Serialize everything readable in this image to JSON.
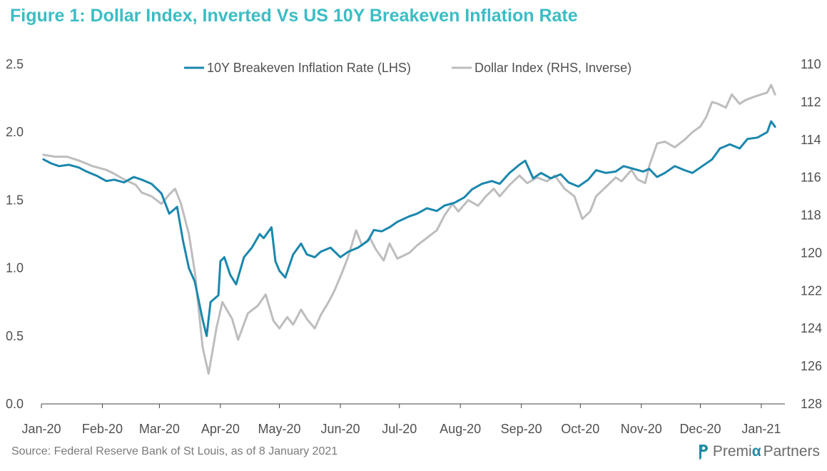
{
  "title": "Figure 1: Dollar Index, Inverted Vs US 10Y Breakeven Inflation Rate",
  "source": "Source: Federal Reserve Bank of St Louis, as of 8 January 2021",
  "brand": {
    "part1": "Premi",
    "alpha": "α",
    "part2": "Partners",
    "icon": "brand-logo-icon"
  },
  "colors": {
    "title": "#3bbdc4",
    "breakeven": "#1a87ad",
    "dollar": "#bdbdbd",
    "axis": "#444444",
    "text": "#505050"
  },
  "chart_data": {
    "type": "line",
    "x_ticks": [
      "Jan-20",
      "Feb-20",
      "Mar-20",
      "Apr-20",
      "May-20",
      "Jun-20",
      "Jul-20",
      "Aug-20",
      "Sep-20",
      "Oct-20",
      "Nov-20",
      "Dec-20",
      "Jan-21"
    ],
    "y_left": {
      "ticks": [
        "0.0",
        "0.5",
        "1.0",
        "1.5",
        "2.0",
        "2.5"
      ],
      "range": [
        0,
        2.5
      ]
    },
    "y_right": {
      "ticks": [
        "110",
        "112",
        "114",
        "116",
        "118",
        "120",
        "122",
        "124",
        "126",
        "128"
      ],
      "range": [
        128,
        110
      ],
      "inverted": true
    },
    "legend_position": "top",
    "grid": false,
    "series": [
      {
        "name": "10Y Breakeven Inflation Rate (LHS)",
        "axis": "left",
        "points": [
          [
            "2020-01-02",
            1.8
          ],
          [
            "2020-01-06",
            1.77
          ],
          [
            "2020-01-10",
            1.75
          ],
          [
            "2020-01-15",
            1.76
          ],
          [
            "2020-01-20",
            1.74
          ],
          [
            "2020-01-24",
            1.71
          ],
          [
            "2020-01-29",
            1.68
          ],
          [
            "2020-02-03",
            1.64
          ],
          [
            "2020-02-07",
            1.65
          ],
          [
            "2020-02-12",
            1.63
          ],
          [
            "2020-02-17",
            1.67
          ],
          [
            "2020-02-21",
            1.65
          ],
          [
            "2020-02-26",
            1.62
          ],
          [
            "2020-03-02",
            1.55
          ],
          [
            "2020-03-06",
            1.4
          ],
          [
            "2020-03-10",
            1.45
          ],
          [
            "2020-03-13",
            1.2
          ],
          [
            "2020-03-16",
            1.0
          ],
          [
            "2020-03-19",
            0.9
          ],
          [
            "2020-03-23",
            0.62
          ],
          [
            "2020-03-25",
            0.5
          ],
          [
            "2020-03-27",
            0.75
          ],
          [
            "2020-03-31",
            0.8
          ],
          [
            "2020-04-01",
            1.05
          ],
          [
            "2020-04-03",
            1.08
          ],
          [
            "2020-04-06",
            0.95
          ],
          [
            "2020-04-09",
            0.88
          ],
          [
            "2020-04-13",
            1.08
          ],
          [
            "2020-04-17",
            1.15
          ],
          [
            "2020-04-21",
            1.25
          ],
          [
            "2020-04-23",
            1.22
          ],
          [
            "2020-04-27",
            1.3
          ],
          [
            "2020-04-29",
            1.05
          ],
          [
            "2020-05-01",
            0.98
          ],
          [
            "2020-05-04",
            0.93
          ],
          [
            "2020-05-08",
            1.1
          ],
          [
            "2020-05-12",
            1.18
          ],
          [
            "2020-05-15",
            1.1
          ],
          [
            "2020-05-19",
            1.08
          ],
          [
            "2020-05-22",
            1.12
          ],
          [
            "2020-05-27",
            1.15
          ],
          [
            "2020-06-01",
            1.08
          ],
          [
            "2020-06-05",
            1.12
          ],
          [
            "2020-06-10",
            1.15
          ],
          [
            "2020-06-15",
            1.2
          ],
          [
            "2020-06-18",
            1.28
          ],
          [
            "2020-06-22",
            1.27
          ],
          [
            "2020-06-26",
            1.3
          ],
          [
            "2020-06-30",
            1.34
          ],
          [
            "2020-07-06",
            1.38
          ],
          [
            "2020-07-10",
            1.4
          ],
          [
            "2020-07-15",
            1.44
          ],
          [
            "2020-07-20",
            1.42
          ],
          [
            "2020-07-24",
            1.46
          ],
          [
            "2020-07-29",
            1.48
          ],
          [
            "2020-08-03",
            1.52
          ],
          [
            "2020-08-07",
            1.58
          ],
          [
            "2020-08-12",
            1.62
          ],
          [
            "2020-08-17",
            1.64
          ],
          [
            "2020-08-21",
            1.62
          ],
          [
            "2020-08-26",
            1.7
          ],
          [
            "2020-08-31",
            1.76
          ],
          [
            "2020-09-03",
            1.79
          ],
          [
            "2020-09-07",
            1.66
          ],
          [
            "2020-09-11",
            1.7
          ],
          [
            "2020-09-16",
            1.66
          ],
          [
            "2020-09-21",
            1.69
          ],
          [
            "2020-09-25",
            1.63
          ],
          [
            "2020-09-30",
            1.6
          ],
          [
            "2020-10-05",
            1.65
          ],
          [
            "2020-10-09",
            1.72
          ],
          [
            "2020-10-14",
            1.7
          ],
          [
            "2020-10-19",
            1.71
          ],
          [
            "2020-10-23",
            1.75
          ],
          [
            "2020-10-28",
            1.73
          ],
          [
            "2020-11-02",
            1.71
          ],
          [
            "2020-11-05",
            1.73
          ],
          [
            "2020-11-09",
            1.67
          ],
          [
            "2020-11-13",
            1.7
          ],
          [
            "2020-11-18",
            1.75
          ],
          [
            "2020-11-23",
            1.72
          ],
          [
            "2020-11-27",
            1.7
          ],
          [
            "2020-12-02",
            1.75
          ],
          [
            "2020-12-07",
            1.8
          ],
          [
            "2020-12-11",
            1.88
          ],
          [
            "2020-12-16",
            1.91
          ],
          [
            "2020-12-21",
            1.88
          ],
          [
            "2020-12-25",
            1.95
          ],
          [
            "2020-12-30",
            1.96
          ],
          [
            "2021-01-04",
            2.0
          ],
          [
            "2021-01-06",
            2.08
          ],
          [
            "2021-01-08",
            2.04
          ]
        ]
      },
      {
        "name": "Dollar Index (RHS, Inverse)",
        "axis": "right",
        "points": [
          [
            "2020-01-02",
            114.8
          ],
          [
            "2020-01-08",
            114.9
          ],
          [
            "2020-01-14",
            114.9
          ],
          [
            "2020-01-20",
            115.1
          ],
          [
            "2020-01-27",
            115.4
          ],
          [
            "2020-02-03",
            115.6
          ],
          [
            "2020-02-07",
            115.8
          ],
          [
            "2020-02-12",
            116.1
          ],
          [
            "2020-02-18",
            116.4
          ],
          [
            "2020-02-21",
            116.8
          ],
          [
            "2020-02-26",
            117.0
          ],
          [
            "2020-03-02",
            117.4
          ],
          [
            "2020-03-06",
            116.9
          ],
          [
            "2020-03-09",
            116.6
          ],
          [
            "2020-03-12",
            117.4
          ],
          [
            "2020-03-16",
            119.0
          ],
          [
            "2020-03-19",
            121.0
          ],
          [
            "2020-03-23",
            125.0
          ],
          [
            "2020-03-26",
            126.4
          ],
          [
            "2020-03-30",
            124.0
          ],
          [
            "2020-04-02",
            122.6
          ],
          [
            "2020-04-07",
            123.5
          ],
          [
            "2020-04-10",
            124.6
          ],
          [
            "2020-04-15",
            123.2
          ],
          [
            "2020-04-20",
            122.8
          ],
          [
            "2020-04-24",
            122.2
          ],
          [
            "2020-04-28",
            123.6
          ],
          [
            "2020-05-01",
            124.0
          ],
          [
            "2020-05-05",
            123.4
          ],
          [
            "2020-05-08",
            123.8
          ],
          [
            "2020-05-12",
            123.0
          ],
          [
            "2020-05-15",
            123.5
          ],
          [
            "2020-05-19",
            124.0
          ],
          [
            "2020-05-22",
            123.3
          ],
          [
            "2020-05-26",
            122.6
          ],
          [
            "2020-05-29",
            122.0
          ],
          [
            "2020-06-02",
            121.0
          ],
          [
            "2020-06-05",
            120.2
          ],
          [
            "2020-06-09",
            118.8
          ],
          [
            "2020-06-12",
            119.6
          ],
          [
            "2020-06-16",
            119.2
          ],
          [
            "2020-06-19",
            119.8
          ],
          [
            "2020-06-23",
            120.4
          ],
          [
            "2020-06-26",
            119.5
          ],
          [
            "2020-06-30",
            120.3
          ],
          [
            "2020-07-06",
            120.0
          ],
          [
            "2020-07-10",
            119.6
          ],
          [
            "2020-07-15",
            119.2
          ],
          [
            "2020-07-20",
            118.8
          ],
          [
            "2020-07-24",
            118.0
          ],
          [
            "2020-07-28",
            117.4
          ],
          [
            "2020-07-31",
            117.8
          ],
          [
            "2020-08-05",
            117.2
          ],
          [
            "2020-08-10",
            117.5
          ],
          [
            "2020-08-14",
            117.0
          ],
          [
            "2020-08-18",
            116.6
          ],
          [
            "2020-08-21",
            117.0
          ],
          [
            "2020-08-26",
            116.4
          ],
          [
            "2020-08-31",
            115.9
          ],
          [
            "2020-09-04",
            116.3
          ],
          [
            "2020-09-09",
            116.0
          ],
          [
            "2020-09-14",
            116.2
          ],
          [
            "2020-09-18",
            115.9
          ],
          [
            "2020-09-23",
            116.6
          ],
          [
            "2020-09-28",
            117.0
          ],
          [
            "2020-10-02",
            118.2
          ],
          [
            "2020-10-06",
            117.8
          ],
          [
            "2020-10-09",
            117.0
          ],
          [
            "2020-10-14",
            116.5
          ],
          [
            "2020-10-19",
            116.0
          ],
          [
            "2020-10-22",
            116.2
          ],
          [
            "2020-10-27",
            115.6
          ],
          [
            "2020-10-30",
            116.1
          ],
          [
            "2020-11-03",
            116.3
          ],
          [
            "2020-11-05",
            115.4
          ],
          [
            "2020-11-09",
            114.2
          ],
          [
            "2020-11-13",
            114.1
          ],
          [
            "2020-11-18",
            114.4
          ],
          [
            "2020-11-23",
            114.0
          ],
          [
            "2020-11-27",
            113.6
          ],
          [
            "2020-12-01",
            113.3
          ],
          [
            "2020-12-04",
            112.8
          ],
          [
            "2020-12-07",
            112.0
          ],
          [
            "2020-12-10",
            112.1
          ],
          [
            "2020-12-14",
            112.3
          ],
          [
            "2020-12-17",
            111.6
          ],
          [
            "2020-12-21",
            112.1
          ],
          [
            "2020-12-24",
            111.9
          ],
          [
            "2020-12-29",
            111.7
          ],
          [
            "2021-01-04",
            111.5
          ],
          [
            "2021-01-06",
            111.1
          ],
          [
            "2021-01-08",
            111.6
          ]
        ]
      }
    ]
  }
}
